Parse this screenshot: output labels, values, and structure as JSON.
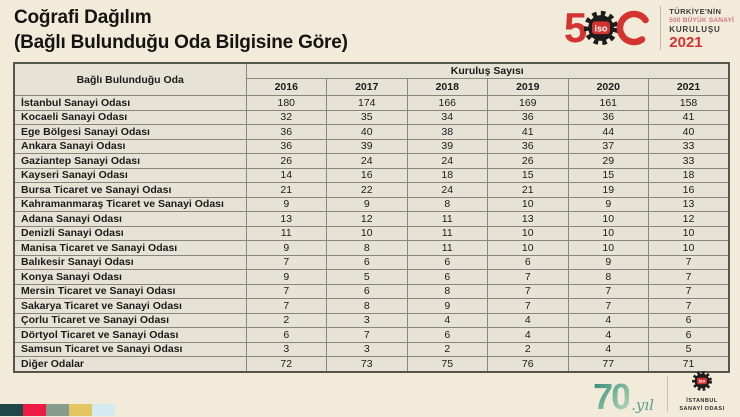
{
  "title": {
    "line1": "Coğrafi Dağılım",
    "line2": "(Bağlı Bulunduğu Oda Bilgisine Göre)"
  },
  "header_logo": {
    "five": "5",
    "gear_text": "iso",
    "tagline_line1": "TÜRKİYE'NİN",
    "tagline_line2": "500 BÜYÜK SANAYİ",
    "tagline_line3": "KURULUŞU",
    "tagline_year": "2021"
  },
  "table": {
    "row_header": "Bağlı Bulunduğu Oda",
    "group_header": "Kuruluş Sayısı",
    "years": [
      "2016",
      "2017",
      "2018",
      "2019",
      "2020",
      "2021"
    ],
    "rows": [
      {
        "name": "İstanbul Sanayi Odası",
        "values": [
          180,
          174,
          166,
          169,
          161,
          158
        ]
      },
      {
        "name": "Kocaeli Sanayi Odası",
        "values": [
          32,
          35,
          34,
          36,
          36,
          41
        ]
      },
      {
        "name": "Ege Bölgesi Sanayi Odası",
        "values": [
          36,
          40,
          38,
          41,
          44,
          40
        ]
      },
      {
        "name": "Ankara Sanayi Odası",
        "values": [
          36,
          39,
          39,
          36,
          37,
          33
        ]
      },
      {
        "name": "Gaziantep Sanayi Odası",
        "values": [
          26,
          24,
          24,
          26,
          29,
          33
        ]
      },
      {
        "name": "Kayseri Sanayi Odası",
        "values": [
          14,
          16,
          18,
          15,
          15,
          18
        ]
      },
      {
        "name": "Bursa Ticaret ve Sanayi Odası",
        "values": [
          21,
          22,
          24,
          21,
          19,
          16
        ]
      },
      {
        "name": "Kahramanmaraş Ticaret ve Sanayi Odası",
        "values": [
          9,
          9,
          8,
          10,
          9,
          13
        ]
      },
      {
        "name": "Adana Sanayi Odası",
        "values": [
          13,
          12,
          11,
          13,
          10,
          12
        ]
      },
      {
        "name": "Denizli Sanayi Odası",
        "values": [
          11,
          10,
          11,
          10,
          10,
          10
        ]
      },
      {
        "name": "Manisa Ticaret ve Sanayi Odası",
        "values": [
          9,
          8,
          11,
          10,
          10,
          10
        ]
      },
      {
        "name": "Balıkesir Sanayi Odası",
        "values": [
          7,
          6,
          6,
          6,
          9,
          7
        ]
      },
      {
        "name": "Konya Sanayi Odası",
        "values": [
          9,
          5,
          6,
          7,
          8,
          7
        ]
      },
      {
        "name": "Mersin Ticaret ve Sanayi Odası",
        "values": [
          7,
          6,
          8,
          7,
          7,
          7
        ]
      },
      {
        "name": "Sakarya Ticaret ve Sanayi Odası",
        "values": [
          7,
          8,
          9,
          7,
          7,
          7
        ]
      },
      {
        "name": "Çorlu Ticaret ve Sanayi Odası",
        "values": [
          2,
          3,
          4,
          4,
          4,
          6
        ]
      },
      {
        "name": "Dörtyol Ticaret ve Sanayi Odası",
        "values": [
          6,
          7,
          6,
          4,
          4,
          6
        ]
      },
      {
        "name": "Samsun Ticaret ve Sanayi Odası",
        "values": [
          3,
          3,
          2,
          2,
          4,
          5
        ]
      },
      {
        "name": "Diğer Odalar",
        "values": [
          72,
          73,
          75,
          76,
          77,
          71
        ]
      }
    ]
  },
  "footer": {
    "strip_colors": [
      "#1e4747",
      "#ee1c45",
      "#879b8e",
      "#e3c562",
      "#d3eaf0"
    ],
    "anniversary": {
      "number": "70",
      "suffix": ".yıl"
    },
    "iso_logo": {
      "gear_text": "iso",
      "line1": "İSTANBUL",
      "line2": "SANAYİ ODASI"
    },
    "colors": {
      "red": "#d4332f",
      "teal": "#2f8a7e",
      "gold": "#e3c562"
    }
  }
}
